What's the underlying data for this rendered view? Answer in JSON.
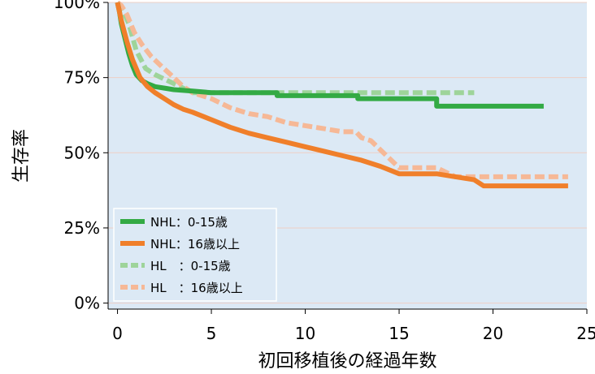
{
  "chart_data": {
    "type": "line",
    "title": "",
    "xlabel": "初回移植後の経過年数",
    "ylabel": "生存率",
    "xlim": [
      -0.5,
      25
    ],
    "ylim": [
      -2,
      100
    ],
    "x_ticks": [
      "0",
      "5",
      "10",
      "15",
      "20",
      "25"
    ],
    "y_ticks": [
      "0%",
      "25%",
      "50%",
      "75%",
      "100%"
    ],
    "grid": true,
    "legend_position": "bottom-left",
    "series": [
      {
        "name": "NHL：0-15歳",
        "color": "#33aa44",
        "style": "solid",
        "points": [
          [
            0,
            100
          ],
          [
            0.1,
            97
          ],
          [
            0.2,
            93
          ],
          [
            0.4,
            88
          ],
          [
            0.6,
            83
          ],
          [
            0.8,
            79
          ],
          [
            1.0,
            76
          ],
          [
            1.3,
            74
          ],
          [
            1.6,
            73
          ],
          [
            2.0,
            72
          ],
          [
            2.5,
            71.5
          ],
          [
            3.0,
            71
          ],
          [
            4.0,
            70.5
          ],
          [
            5.0,
            70
          ],
          [
            8.5,
            70
          ],
          [
            8.5,
            69
          ],
          [
            12.8,
            69
          ],
          [
            12.8,
            68
          ],
          [
            17.0,
            68
          ],
          [
            17.0,
            65.5
          ],
          [
            22.7,
            65.5
          ]
        ]
      },
      {
        "name": "NHL：16歳以上",
        "color": "#f07f2a",
        "style": "solid",
        "points": [
          [
            0,
            100
          ],
          [
            0.2,
            94
          ],
          [
            0.5,
            87
          ],
          [
            0.8,
            81
          ],
          [
            1.2,
            75
          ],
          [
            1.6,
            72
          ],
          [
            2.0,
            70
          ],
          [
            2.5,
            68
          ],
          [
            3.0,
            66
          ],
          [
            3.5,
            64.5
          ],
          [
            4.0,
            63.5
          ],
          [
            5.0,
            61
          ],
          [
            6.0,
            58.5
          ],
          [
            7.0,
            56.5
          ],
          [
            8.0,
            55
          ],
          [
            9.0,
            53.5
          ],
          [
            10.0,
            52
          ],
          [
            11.0,
            50.5
          ],
          [
            12.0,
            49
          ],
          [
            13.0,
            47.5
          ],
          [
            14.0,
            45.5
          ],
          [
            15.0,
            43
          ],
          [
            17.0,
            43
          ],
          [
            18.0,
            42
          ],
          [
            19.0,
            41
          ],
          [
            19.5,
            39
          ],
          [
            24.0,
            39
          ]
        ]
      },
      {
        "name": "HL　：0-15歳",
        "color": "#9ed49a",
        "style": "dashed",
        "points": [
          [
            0,
            100
          ],
          [
            0.3,
            97
          ],
          [
            0.6,
            93
          ],
          [
            1.0,
            84
          ],
          [
            1.5,
            78
          ],
          [
            2.0,
            76
          ],
          [
            3.0,
            73
          ],
          [
            4.0,
            70
          ],
          [
            19.0,
            70
          ]
        ]
      },
      {
        "name": "HL　：16歳以上",
        "color": "#f6b896",
        "style": "dashed",
        "points": [
          [
            0,
            100
          ],
          [
            0.2,
            99
          ],
          [
            0.5,
            96
          ],
          [
            0.9,
            90
          ],
          [
            1.3,
            86
          ],
          [
            1.8,
            82
          ],
          [
            2.3,
            79
          ],
          [
            3.0,
            75
          ],
          [
            3.5,
            72
          ],
          [
            4.0,
            70
          ],
          [
            5.0,
            68
          ],
          [
            6.0,
            65
          ],
          [
            7.0,
            63
          ],
          [
            8.0,
            62
          ],
          [
            9.0,
            60
          ],
          [
            10.0,
            59
          ],
          [
            11.0,
            58
          ],
          [
            12.0,
            57
          ],
          [
            12.7,
            57
          ],
          [
            13.0,
            55
          ],
          [
            13.5,
            54
          ],
          [
            14.0,
            51
          ],
          [
            14.5,
            48
          ],
          [
            15.0,
            45
          ],
          [
            17.0,
            45
          ],
          [
            18.0,
            42
          ],
          [
            24.0,
            42
          ]
        ]
      }
    ]
  },
  "colors": {
    "plot_background": "#dce9f5",
    "grid": "#eecfc5"
  }
}
